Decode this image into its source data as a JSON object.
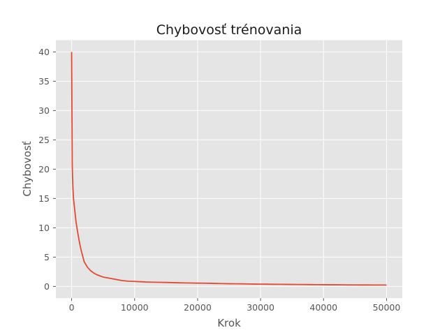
{
  "chart_data": {
    "type": "line",
    "title": "Chybovosť trénovania",
    "xlabel": "Krok",
    "ylabel": "Chybovosť",
    "xlim": [
      -2500,
      52500
    ],
    "ylim": [
      -2,
      42
    ],
    "xticks": [
      0,
      10000,
      20000,
      30000,
      40000,
      50000
    ],
    "yticks": [
      0,
      5,
      10,
      15,
      20,
      25,
      30,
      35,
      40
    ],
    "grid": true,
    "background": "#e5e5e5",
    "line_color": "#e24a33",
    "series": [
      {
        "x": [
          0,
          100,
          200,
          300,
          500,
          700,
          1000,
          1300,
          1600,
          2000,
          2500,
          3000,
          3500,
          4000,
          5000,
          6000,
          7000,
          8000,
          9000,
          10000,
          11000,
          12000,
          13000,
          14000,
          15000,
          16000,
          17000,
          18000,
          19000,
          20000,
          21000,
          22000,
          23000,
          24000,
          25000,
          26000,
          27000,
          28000,
          29000,
          30000,
          31000,
          32000,
          33000,
          34000,
          35000,
          36000,
          37000,
          38000,
          39000,
          40000,
          41000,
          42000,
          43000,
          44000,
          45000,
          46000,
          47000,
          48000,
          49000,
          50000
        ],
        "y": [
          40,
          20.5,
          17,
          15,
          13,
          11,
          9,
          7.2,
          5.8,
          4.2,
          3.3,
          2.7,
          2.3,
          2.0,
          1.6,
          1.4,
          1.2,
          1.0,
          0.9,
          0.85,
          0.8,
          0.75,
          0.72,
          0.7,
          0.68,
          0.65,
          0.62,
          0.6,
          0.58,
          0.56,
          0.55,
          0.53,
          0.5,
          0.48,
          0.46,
          0.45,
          0.44,
          0.42,
          0.4,
          0.39,
          0.38,
          0.37,
          0.36,
          0.35,
          0.34,
          0.33,
          0.32,
          0.31,
          0.3,
          0.29,
          0.28,
          0.28,
          0.27,
          0.26,
          0.26,
          0.25,
          0.25,
          0.24,
          0.24,
          0.24
        ]
      }
    ]
  }
}
